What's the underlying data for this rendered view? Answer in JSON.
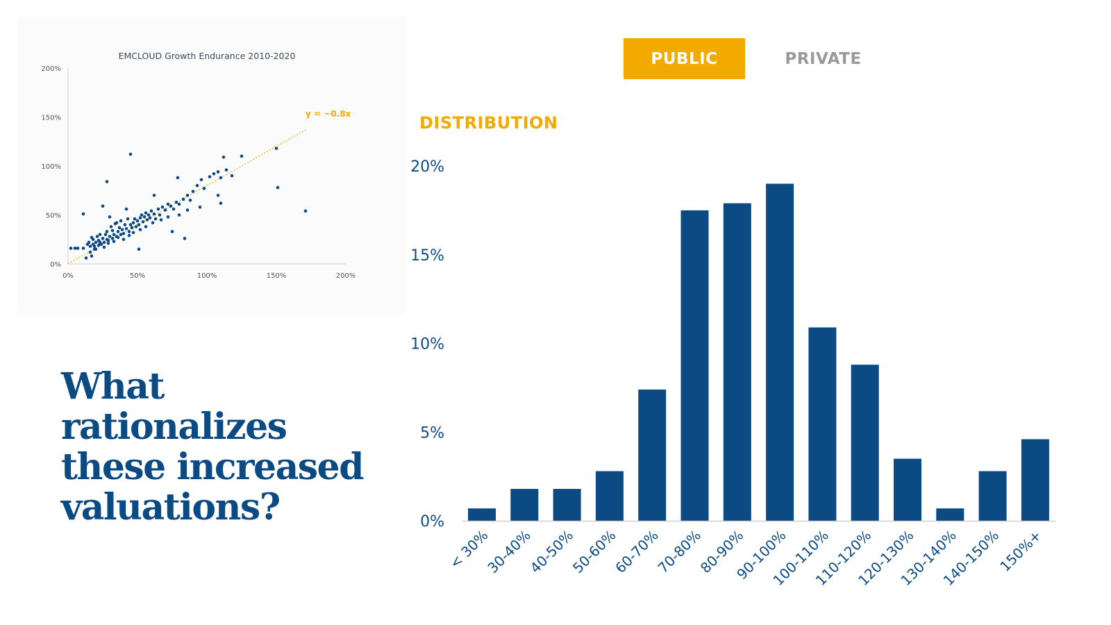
{
  "tabs": {
    "public_label": "PUBLIC",
    "private_label": "PRIVATE",
    "active": "PUBLIC"
  },
  "distribution_label": "DISTRIBUTION",
  "headline": "What rationalizes these increased valuations?",
  "colors": {
    "accent": "#f2a900",
    "navy": "#0b4a82",
    "inactive_tab": "#9a9a9a"
  },
  "chart_data": [
    {
      "type": "scatter",
      "title": "EMCLOUD Growth Endurance 2010-2020",
      "xlabel": "",
      "ylabel": "",
      "xlim": [
        0,
        200
      ],
      "ylim": [
        0,
        200
      ],
      "x_ticks": [
        "0%",
        "50%",
        "100%",
        "150%",
        "200%"
      ],
      "y_ticks": [
        "0%",
        "50%",
        "100%",
        "150%",
        "200%"
      ],
      "trendline": {
        "label": "y = ~0.8x",
        "slope": 0.8,
        "x_range": [
          0,
          172
        ]
      },
      "points": [
        [
          2,
          16
        ],
        [
          5,
          16
        ],
        [
          7,
          16
        ],
        [
          11,
          51
        ],
        [
          11,
          16
        ],
        [
          13,
          6
        ],
        [
          14,
          20
        ],
        [
          15,
          22
        ],
        [
          16,
          18
        ],
        [
          16,
          12
        ],
        [
          17,
          8
        ],
        [
          17,
          27
        ],
        [
          18,
          20
        ],
        [
          18,
          25
        ],
        [
          19,
          18
        ],
        [
          20,
          22
        ],
        [
          20,
          15
        ],
        [
          21,
          28
        ],
        [
          22,
          19
        ],
        [
          22,
          24
        ],
        [
          23,
          30
        ],
        [
          24,
          20
        ],
        [
          25,
          26
        ],
        [
          26,
          22
        ],
        [
          27,
          30
        ],
        [
          28,
          25
        ],
        [
          28,
          33
        ],
        [
          29,
          21
        ],
        [
          30,
          28
        ],
        [
          31,
          38
        ],
        [
          32,
          26
        ],
        [
          32,
          34
        ],
        [
          33,
          30
        ],
        [
          34,
          41
        ],
        [
          35,
          28
        ],
        [
          36,
          33
        ],
        [
          37,
          37
        ],
        [
          38,
          30
        ],
        [
          38,
          44
        ],
        [
          39,
          35
        ],
        [
          40,
          31
        ],
        [
          41,
          40
        ],
        [
          42,
          36
        ],
        [
          43,
          46
        ],
        [
          44,
          33
        ],
        [
          45,
          40
        ],
        [
          46,
          37
        ],
        [
          47,
          42
        ],
        [
          48,
          46
        ],
        [
          49,
          38
        ],
        [
          50,
          44
        ],
        [
          51,
          40
        ],
        [
          52,
          47
        ],
        [
          53,
          50
        ],
        [
          54,
          43
        ],
        [
          55,
          48
        ],
        [
          56,
          52
        ],
        [
          57,
          45
        ],
        [
          58,
          50
        ],
        [
          59,
          47
        ],
        [
          60,
          54
        ],
        [
          62,
          51
        ],
        [
          63,
          46
        ],
        [
          65,
          56
        ],
        [
          66,
          50
        ],
        [
          68,
          58
        ],
        [
          70,
          55
        ],
        [
          72,
          61
        ],
        [
          74,
          59
        ],
        [
          76,
          56
        ],
        [
          78,
          63
        ],
        [
          80,
          61
        ],
        [
          83,
          66
        ],
        [
          86,
          70
        ],
        [
          88,
          65
        ],
        [
          90,
          74
        ],
        [
          93,
          80
        ],
        [
          96,
          86
        ],
        [
          98,
          77
        ],
        [
          102,
          89
        ],
        [
          105,
          92
        ],
        [
          108,
          94
        ],
        [
          110,
          88
        ],
        [
          112,
          109
        ],
        [
          114,
          96
        ],
        [
          118,
          90
        ],
        [
          125,
          110
        ],
        [
          19,
          15
        ],
        [
          23,
          22
        ],
        [
          26,
          17
        ],
        [
          29,
          24
        ],
        [
          33,
          23
        ],
        [
          36,
          27
        ],
        [
          40,
          25
        ],
        [
          44,
          29
        ],
        [
          47,
          32
        ],
        [
          52,
          35
        ],
        [
          56,
          38
        ],
        [
          61,
          42
        ],
        [
          67,
          45
        ],
        [
          72,
          48
        ],
        [
          80,
          50
        ],
        [
          86,
          55
        ],
        [
          95,
          58
        ],
        [
          108,
          70
        ],
        [
          110,
          62
        ],
        [
          150,
          118
        ],
        [
          151,
          78
        ],
        [
          171,
          54
        ],
        [
          45,
          112
        ],
        [
          28,
          84
        ],
        [
          25,
          59
        ],
        [
          30,
          48
        ],
        [
          62,
          70
        ],
        [
          79,
          88
        ],
        [
          84,
          26
        ],
        [
          75,
          33
        ],
        [
          51,
          15
        ],
        [
          35,
          42
        ],
        [
          42,
          56
        ]
      ]
    },
    {
      "type": "bar",
      "title": "",
      "xlabel": "",
      "ylabel": "",
      "ylim": [
        0,
        20
      ],
      "y_ticks": [
        "0%",
        "5%",
        "10%",
        "15%",
        "20%"
      ],
      "categories": [
        "< 30%",
        "30-40%",
        "40-50%",
        "50-60%",
        "60-70%",
        "70-80%",
        "80-90%",
        "90-100%",
        "100-110%",
        "110-120%",
        "120-130%",
        "130-140%",
        "140-150%",
        "150%+"
      ],
      "values": [
        0.7,
        1.8,
        1.8,
        2.8,
        7.4,
        17.5,
        17.9,
        19.0,
        10.9,
        8.8,
        3.5,
        0.7,
        2.8,
        4.6
      ]
    }
  ]
}
